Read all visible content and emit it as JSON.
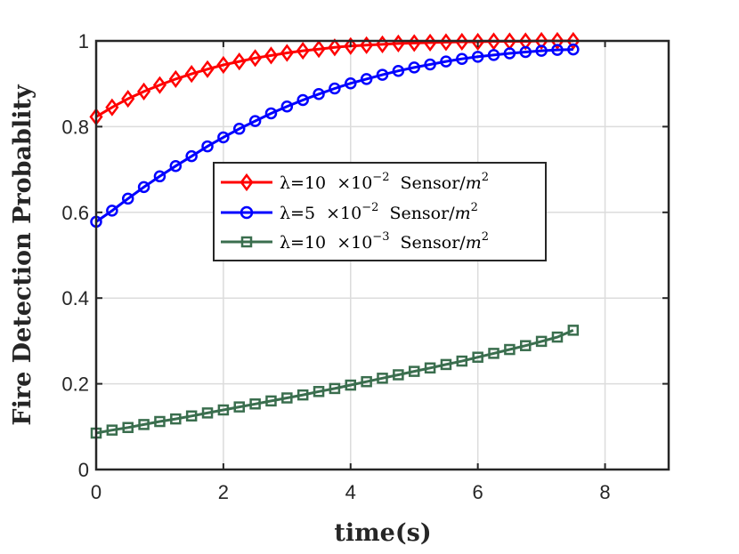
{
  "chart_data": {
    "type": "line",
    "title": "",
    "xlabel": "time(s)",
    "ylabel": "Fire Detection Probablity",
    "xlim": [
      0,
      9
    ],
    "ylim": [
      0,
      1
    ],
    "xticks": [
      "0",
      "2",
      "4",
      "6",
      "8"
    ],
    "yticks": [
      "0",
      "0.2",
      "0.4",
      "0.6",
      "0.8",
      "1"
    ],
    "xtick_values": [
      0,
      2,
      4,
      6,
      8
    ],
    "ytick_values": [
      0,
      0.2,
      0.4,
      0.6,
      0.8,
      1
    ],
    "grid": true,
    "legend_position": "center",
    "x": [
      0,
      0.25,
      0.5,
      0.75,
      1,
      1.25,
      1.5,
      1.75,
      2,
      2.25,
      2.5,
      2.75,
      3,
      3.25,
      3.5,
      3.75,
      4,
      4.25,
      4.5,
      4.75,
      5,
      5.25,
      5.5,
      5.75,
      6,
      6.25,
      6.5,
      6.75,
      7,
      7.25,
      7.5
    ],
    "series": [
      {
        "name": "λ=10 ×10⁻² Sensor/m²",
        "color": "#ff0000",
        "marker": "diamond",
        "values": [
          0.823,
          0.845,
          0.865,
          0.882,
          0.897,
          0.911,
          0.923,
          0.934,
          0.944,
          0.952,
          0.96,
          0.966,
          0.972,
          0.977,
          0.981,
          0.985,
          0.988,
          0.99,
          0.992,
          0.994,
          0.995,
          0.996,
          0.997,
          0.998,
          0.998,
          0.999,
          0.999,
          0.999,
          1.0,
          1.0,
          1.0
        ]
      },
      {
        "name": "λ=5 ×10⁻² Sensor/m²",
        "color": "#0000ff",
        "marker": "circle",
        "values": [
          0.578,
          0.604,
          0.632,
          0.659,
          0.684,
          0.708,
          0.731,
          0.754,
          0.775,
          0.795,
          0.813,
          0.831,
          0.847,
          0.862,
          0.876,
          0.889,
          0.901,
          0.911,
          0.921,
          0.93,
          0.938,
          0.945,
          0.952,
          0.958,
          0.963,
          0.967,
          0.971,
          0.974,
          0.977,
          0.979,
          0.98
        ]
      },
      {
        "name": "λ=10 ×10⁻³ Sensor/m²",
        "color": "#3a6e4e",
        "marker": "square",
        "values": [
          0.085,
          0.092,
          0.098,
          0.105,
          0.112,
          0.118,
          0.125,
          0.132,
          0.139,
          0.146,
          0.153,
          0.16,
          0.167,
          0.174,
          0.182,
          0.189,
          0.197,
          0.205,
          0.213,
          0.221,
          0.229,
          0.237,
          0.245,
          0.253,
          0.262,
          0.271,
          0.28,
          0.289,
          0.299,
          0.309,
          0.325
        ]
      }
    ]
  },
  "legend": {
    "entries": [
      {
        "lambda": "λ=10",
        "times": "×10",
        "exp": "−2",
        "unit": "Sensor/",
        "m": "m",
        "sq": "2"
      },
      {
        "lambda": "λ=5",
        "times": "×10",
        "exp": "−2",
        "unit": "Sensor/",
        "m": "m",
        "sq": "2"
      },
      {
        "lambda": "λ=10",
        "times": "×10",
        "exp": "−3",
        "unit": "Sensor/",
        "m": "m",
        "sq": "2"
      }
    ]
  }
}
